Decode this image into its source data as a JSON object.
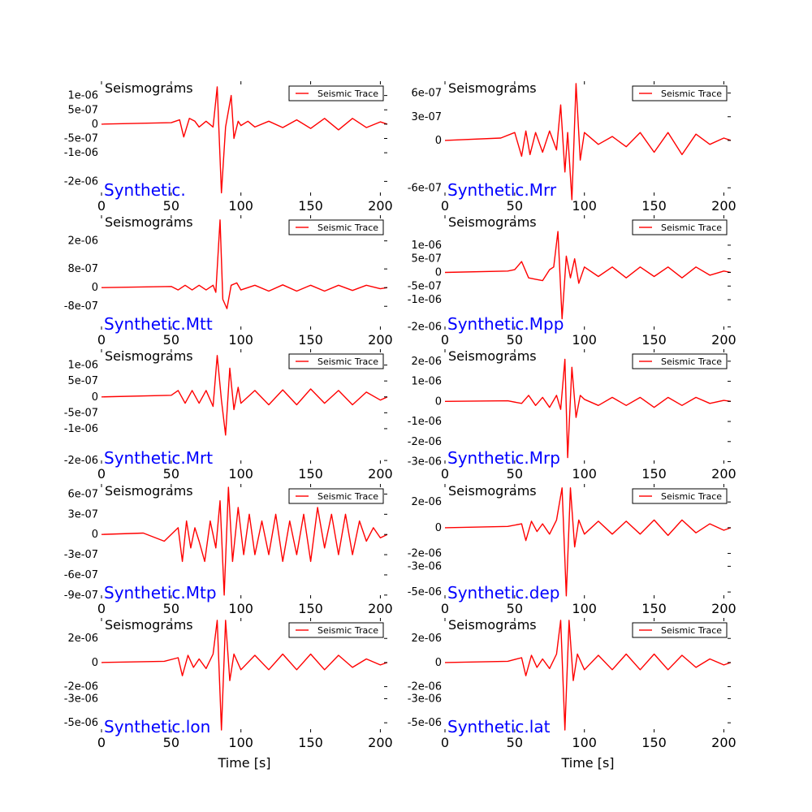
{
  "figure": {
    "xlabel": "Time [s]",
    "legend_label": "Seismic Trace",
    "panel_title": "Seismograms",
    "line_color": "#ff0000",
    "name_color": "#0000ff",
    "legend_position": "top-right"
  },
  "chart_data": [
    {
      "type": "line",
      "name": "Synthetic.",
      "xlim": [
        0,
        205
      ],
      "ylim": [
        -2.5e-06,
        1.5e-06
      ],
      "xticks": [
        0,
        50,
        100,
        150,
        200
      ],
      "yticks": [
        1e-06,
        5e-07,
        0,
        -5e-07,
        -1e-06,
        -2e-06
      ],
      "ytick_labels": [
        "1e-06",
        "5e-07",
        "0",
        "-5e-07",
        "-1e-06",
        "-2e-06"
      ],
      "series": [
        {
          "name": "Seismic Trace",
          "x": [
            0,
            50,
            56,
            59,
            63,
            67,
            70,
            75,
            80,
            83,
            86,
            89,
            93,
            95,
            98,
            100,
            105,
            110,
            120,
            130,
            140,
            150,
            160,
            170,
            180,
            190,
            200,
            205
          ],
          "y": [
            0,
            5e-08,
            1.5e-07,
            -4.5e-07,
            2e-07,
            1e-07,
            -1e-07,
            1e-07,
            -1e-07,
            1.3e-06,
            -2.4e-06,
            -1e-07,
            1e-06,
            -5e-07,
            1e-07,
            -5e-08,
            1e-07,
            -1e-07,
            1e-07,
            -1.2e-07,
            1.5e-07,
            -1.5e-07,
            2e-07,
            -2e-07,
            2e-07,
            -1.2e-07,
            8e-08,
            0
          ]
        }
      ]
    },
    {
      "type": "line",
      "name": "Synthetic.Mrr",
      "xlim": [
        0,
        205
      ],
      "ylim": [
        -7e-07,
        7.5e-07
      ],
      "xticks": [
        0,
        50,
        100,
        150,
        200
      ],
      "yticks": [
        6e-07,
        3e-07,
        0,
        -6e-07
      ],
      "ytick_labels": [
        "6e-07",
        "3e-07",
        "0",
        "-6e-07"
      ],
      "series": [
        {
          "name": "Seismic Trace",
          "x": [
            0,
            40,
            50,
            55,
            58,
            61,
            65,
            70,
            75,
            80,
            83,
            86,
            88,
            91,
            94,
            97,
            100,
            110,
            120,
            130,
            140,
            150,
            160,
            170,
            180,
            190,
            200,
            205
          ],
          "y": [
            0,
            3e-08,
            1e-07,
            -2e-07,
            1.2e-07,
            -1.8e-07,
            1e-07,
            -1.5e-07,
            1.2e-07,
            -1.2e-07,
            4.5e-07,
            -4e-07,
            1e-07,
            -7.5e-07,
            7.2e-07,
            -2.5e-07,
            1e-07,
            -5e-08,
            5e-08,
            -8e-08,
            1e-07,
            -1.5e-07,
            1e-07,
            -1.8e-07,
            8e-08,
            -5e-08,
            3e-08,
            0
          ]
        }
      ]
    },
    {
      "type": "line",
      "name": "Synthetic.Mtt",
      "xlim": [
        0,
        205
      ],
      "ylim": [
        -1.8e-06,
        3.1e-06
      ],
      "xticks": [
        0,
        50,
        100,
        150,
        200
      ],
      "yticks": [
        2e-06,
        8e-07,
        0,
        -8e-07
      ],
      "ytick_labels": [
        "2e-06",
        "8e-07",
        "0",
        "-8e-07"
      ],
      "series": [
        {
          "name": "Seismic Trace",
          "x": [
            0,
            50,
            55,
            60,
            65,
            70,
            75,
            80,
            82,
            85,
            87,
            90,
            93,
            97,
            100,
            110,
            120,
            130,
            140,
            150,
            160,
            170,
            180,
            190,
            200,
            205
          ],
          "y": [
            0,
            5e-08,
            -1e-07,
            1e-07,
            -1e-07,
            1e-07,
            -1e-07,
            1e-07,
            -2e-07,
            2.9e-06,
            -5e-07,
            -9e-07,
            1e-07,
            2e-07,
            -1e-07,
            1e-07,
            -1.5e-07,
            1.2e-07,
            -1.5e-07,
            1e-07,
            -1.5e-07,
            1e-07,
            -1.2e-07,
            1e-07,
            -5e-08,
            0
          ]
        }
      ]
    },
    {
      "type": "line",
      "name": "Synthetic.Mpp",
      "xlim": [
        0,
        205
      ],
      "ylim": [
        -2.1e-06,
        2.1e-06
      ],
      "xticks": [
        0,
        50,
        100,
        150,
        200
      ],
      "yticks": [
        1e-06,
        5e-07,
        0,
        -5e-07,
        -1e-06,
        -2e-06
      ],
      "ytick_labels": [
        "1e-06",
        "5e-07",
        "0",
        "-5e-07",
        "-1e-06",
        "-2e-06"
      ],
      "series": [
        {
          "name": "Seismic Trace",
          "x": [
            0,
            45,
            50,
            55,
            60,
            65,
            70,
            75,
            78,
            81,
            84,
            87,
            90,
            93,
            96,
            100,
            110,
            120,
            130,
            140,
            150,
            160,
            170,
            180,
            190,
            200,
            205
          ],
          "y": [
            0,
            5e-08,
            1e-07,
            4e-07,
            -2e-07,
            -2.5e-07,
            -3e-07,
            1e-07,
            2e-07,
            1.5e-06,
            -1.7e-06,
            6e-07,
            -2e-07,
            5e-07,
            -4e-07,
            2e-07,
            -1.5e-07,
            2e-07,
            -2e-07,
            2e-07,
            -1.5e-07,
            2e-07,
            -2e-07,
            2e-07,
            -1e-07,
            5e-08,
            0
          ]
        }
      ]
    },
    {
      "type": "line",
      "name": "Synthetic.Mrt",
      "xlim": [
        0,
        205
      ],
      "ylim": [
        -2.1e-06,
        1.5e-06
      ],
      "xticks": [
        0,
        50,
        100,
        150,
        200
      ],
      "yticks": [
        1e-06,
        5e-07,
        0,
        -5e-07,
        -1e-06,
        -2e-06
      ],
      "ytick_labels": [
        "1e-06",
        "5e-07",
        "0",
        "-5e-07",
        "-1e-06",
        "-2e-06"
      ],
      "series": [
        {
          "name": "Seismic Trace",
          "x": [
            0,
            50,
            55,
            60,
            65,
            70,
            75,
            80,
            83,
            86,
            89,
            92,
            95,
            98,
            100,
            110,
            120,
            130,
            140,
            150,
            160,
            170,
            180,
            190,
            200,
            205
          ],
          "y": [
            0,
            5e-08,
            2e-07,
            -2e-07,
            2e-07,
            -2e-07,
            2e-07,
            -3e-07,
            1.3e-06,
            -1e-07,
            -1.2e-06,
            9e-07,
            -4e-07,
            3e-07,
            -2e-07,
            2e-07,
            -2.5e-07,
            2.2e-07,
            -2.5e-07,
            2.5e-07,
            -2e-07,
            2e-07,
            -2.5e-07,
            1.5e-07,
            -1e-07,
            0
          ]
        }
      ]
    },
    {
      "type": "line",
      "name": "Synthetic.Mrp",
      "xlim": [
        0,
        205
      ],
      "ylim": [
        -3.1e-06,
        2.6e-06
      ],
      "xticks": [
        0,
        50,
        100,
        150,
        200
      ],
      "yticks": [
        2e-06,
        1e-06,
        0,
        -1e-06,
        -2e-06,
        -3e-06
      ],
      "ytick_labels": [
        "2e-06",
        "1e-06",
        "0",
        "-1e-06",
        "-2e-06",
        "-3e-06"
      ],
      "series": [
        {
          "name": "Seismic Trace",
          "x": [
            0,
            45,
            55,
            60,
            65,
            70,
            75,
            80,
            83,
            86,
            88,
            91,
            94,
            97,
            100,
            110,
            120,
            130,
            140,
            150,
            160,
            170,
            180,
            190,
            200,
            205
          ],
          "y": [
            0,
            3e-08,
            -1e-07,
            3e-07,
            -2e-07,
            2e-07,
            -3e-07,
            3e-07,
            -4e-07,
            2.1e-06,
            -2.8e-06,
            1.7e-06,
            -8e-07,
            3e-07,
            1e-07,
            -2e-07,
            2e-07,
            -2e-07,
            2e-07,
            -3e-07,
            2e-07,
            -2e-07,
            2e-07,
            -1e-07,
            5e-08,
            0
          ]
        }
      ]
    },
    {
      "type": "line",
      "name": "Synthetic.Mtp",
      "xlim": [
        0,
        205
      ],
      "ylim": [
        -9.5e-07,
        7.5e-07
      ],
      "xticks": [
        0,
        50,
        100,
        150,
        200
      ],
      "yticks": [
        6e-07,
        3e-07,
        0,
        -3e-07,
        -6e-07,
        -9e-07
      ],
      "ytick_labels": [
        "6e-07",
        "3e-07",
        "0",
        "-3e-07",
        "-6e-07",
        "-9e-07"
      ],
      "series": [
        {
          "name": "Seismic Trace",
          "x": [
            0,
            30,
            45,
            55,
            58,
            61,
            64,
            67,
            70,
            74,
            78,
            82,
            85,
            88,
            91,
            94,
            98,
            102,
            106,
            110,
            115,
            120,
            125,
            130,
            135,
            140,
            145,
            150,
            155,
            160,
            165,
            170,
            175,
            180,
            185,
            190,
            195,
            200,
            205
          ],
          "y": [
            0,
            2e-08,
            -1e-07,
            1e-07,
            -4e-07,
            2e-07,
            -2e-07,
            1e-07,
            -1e-07,
            -4e-07,
            2e-07,
            -2e-07,
            5e-07,
            -9e-07,
            7e-07,
            -4e-07,
            4e-07,
            -3e-07,
            3e-07,
            -3e-07,
            2e-07,
            -3e-07,
            3e-07,
            -4e-07,
            2e-07,
            -3e-07,
            3e-07,
            -4e-07,
            4e-07,
            -2e-07,
            3e-07,
            -3e-07,
            3e-07,
            -3e-07,
            2e-07,
            -1e-07,
            1e-07,
            -5e-08,
            0
          ]
        }
      ]
    },
    {
      "type": "line",
      "name": "Synthetic.dep",
      "xlim": [
        0,
        205
      ],
      "ylim": [
        -5.5e-06,
        3.4e-06
      ],
      "xticks": [
        0,
        50,
        100,
        150,
        200
      ],
      "yticks": [
        2e-06,
        0,
        -2e-06,
        -3e-06,
        -5e-06
      ],
      "ytick_labels": [
        "2e-06",
        "0",
        "-2e-06",
        "-3e-06",
        "-5e-06"
      ],
      "series": [
        {
          "name": "Seismic Trace",
          "x": [
            0,
            45,
            55,
            58,
            62,
            66,
            70,
            75,
            80,
            84,
            87,
            90,
            93,
            96,
            100,
            110,
            120,
            130,
            140,
            150,
            160,
            170,
            180,
            190,
            200,
            205
          ],
          "y": [
            0,
            1e-07,
            3e-07,
            -1e-06,
            5e-07,
            -3e-07,
            3e-07,
            -5e-07,
            6e-07,
            3.1e-06,
            -5.3e-06,
            3.1e-06,
            -1.5e-06,
            6e-07,
            -5e-07,
            5e-07,
            -5e-07,
            5e-07,
            -5e-07,
            6e-07,
            -6e-07,
            6e-07,
            -4e-07,
            3e-07,
            -2e-07,
            0
          ]
        }
      ]
    },
    {
      "type": "line",
      "name": "Synthetic.lon",
      "xlim": [
        0,
        205
      ],
      "ylim": [
        -5.8e-06,
        3.7e-06
      ],
      "xticks": [
        0,
        50,
        100,
        150,
        200
      ],
      "yticks": [
        2e-06,
        0,
        -2e-06,
        -3e-06,
        -5e-06
      ],
      "ytick_labels": [
        "2e-06",
        "0",
        "-2e-06",
        "-3e-06",
        "-5e-06"
      ],
      "series": [
        {
          "name": "Seismic Trace",
          "x": [
            0,
            45,
            55,
            58,
            62,
            66,
            70,
            75,
            80,
            83,
            86,
            89,
            92,
            95,
            100,
            110,
            120,
            130,
            140,
            150,
            160,
            170,
            180,
            190,
            200,
            205
          ],
          "y": [
            0,
            1e-07,
            4e-07,
            -1.1e-06,
            6e-07,
            -4e-07,
            3e-07,
            -5e-07,
            7e-07,
            3.5e-06,
            -5.6e-06,
            3.5e-06,
            -1.5e-06,
            7e-07,
            -6e-07,
            6e-07,
            -6e-07,
            7e-07,
            -6e-07,
            7e-07,
            -6e-07,
            6e-07,
            -4e-07,
            3e-07,
            -2e-07,
            0
          ]
        }
      ]
    },
    {
      "type": "line",
      "name": "Synthetic.lat",
      "xlim": [
        0,
        205
      ],
      "ylim": [
        -5.8e-06,
        3.7e-06
      ],
      "xticks": [
        0,
        50,
        100,
        150,
        200
      ],
      "yticks": [
        2e-06,
        0,
        -2e-06,
        -3e-06,
        -5e-06
      ],
      "ytick_labels": [
        "2e-06",
        "0",
        "-2e-06",
        "-3e-06",
        "-5e-06"
      ],
      "series": [
        {
          "name": "Seismic Trace",
          "x": [
            0,
            45,
            55,
            58,
            62,
            66,
            70,
            75,
            80,
            83,
            86,
            89,
            92,
            95,
            100,
            110,
            120,
            130,
            140,
            150,
            160,
            170,
            180,
            190,
            200,
            205
          ],
          "y": [
            0,
            1e-07,
            4e-07,
            -1.1e-06,
            6e-07,
            -4e-07,
            3e-07,
            -5e-07,
            7e-07,
            3.5e-06,
            -5.6e-06,
            3.5e-06,
            -1.5e-06,
            7e-07,
            -6e-07,
            6e-07,
            -6e-07,
            7e-07,
            -6e-07,
            7e-07,
            -6e-07,
            6e-07,
            -4e-07,
            3e-07,
            -2e-07,
            0
          ]
        }
      ]
    }
  ]
}
